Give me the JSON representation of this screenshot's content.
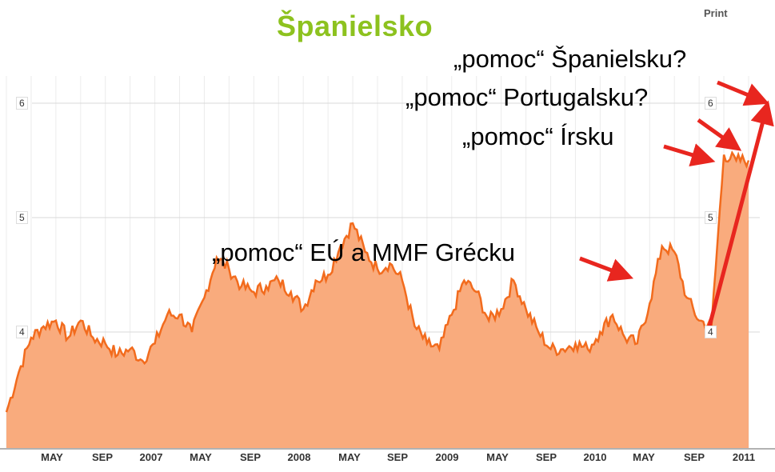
{
  "title": "Španielsko",
  "print_label": "Print",
  "annotations": [
    {
      "text": "„pomoc“ Španielsku?"
    },
    {
      "text": "„pomoc“ Portugalsku?"
    },
    {
      "text": "„pomoc“ Írsku"
    },
    {
      "text": "„pomoc“ EÚ a MMF Grécku"
    }
  ],
  "colors": {
    "line": "#f26b1d",
    "fill": "#f9ab7d",
    "arrow": "#e8261f",
    "title": "#8dc21f"
  },
  "chart_data": {
    "type": "area",
    "title": "Španielsko",
    "xlabel": "",
    "ylabel": "",
    "ylim": [
      3.0,
      6.3
    ],
    "yticks": [
      "6",
      "5",
      "4"
    ],
    "right_yticks": [
      "6",
      "5",
      "4"
    ],
    "x_tick_labels": [
      "MAY",
      "SEP",
      "2007",
      "MAY",
      "SEP",
      "2008",
      "MAY",
      "SEP",
      "2009",
      "MAY",
      "SEP",
      "2010",
      "MAY",
      "SEP",
      "2011"
    ],
    "grid": true,
    "series": [
      {
        "x": [
          "2006-01",
          "2006-02",
          "2006-03",
          "2006-04",
          "2006-05",
          "2006-06",
          "2006-07",
          "2006-08",
          "2006-09",
          "2006-10",
          "2006-11",
          "2006-12",
          "2007-01",
          "2007-02",
          "2007-03",
          "2007-04",
          "2007-05",
          "2007-06",
          "2007-07",
          "2007-08",
          "2007-09",
          "2007-10",
          "2007-11",
          "2007-12",
          "2008-01",
          "2008-02",
          "2008-03",
          "2008-04",
          "2008-05",
          "2008-06",
          "2008-07",
          "2008-08",
          "2008-09",
          "2008-10",
          "2008-11",
          "2008-12",
          "2009-01",
          "2009-02",
          "2009-03",
          "2009-04",
          "2009-05",
          "2009-06",
          "2009-07",
          "2009-08",
          "2009-09",
          "2009-10",
          "2009-11",
          "2009-12",
          "2010-01",
          "2010-02",
          "2010-03",
          "2010-04",
          "2010-05",
          "2010-06",
          "2010-07",
          "2010-08",
          "2010-09",
          "2010-10",
          "2010-11",
          "2010-12",
          "2011-01"
        ],
        "values": [
          3.3,
          3.65,
          3.95,
          4.05,
          4.1,
          3.95,
          4.1,
          3.95,
          3.9,
          3.8,
          3.85,
          3.75,
          3.9,
          4.15,
          4.15,
          4.0,
          4.3,
          4.65,
          4.55,
          4.4,
          4.35,
          4.4,
          4.45,
          4.35,
          4.2,
          4.45,
          4.5,
          4.75,
          4.95,
          4.7,
          4.55,
          4.6,
          4.45,
          4.05,
          3.9,
          3.85,
          4.15,
          4.45,
          4.35,
          4.1,
          4.2,
          4.45,
          4.2,
          4.0,
          3.85,
          3.85,
          3.9,
          3.85,
          4.0,
          4.15,
          3.95,
          3.9,
          4.25,
          4.75,
          4.7,
          4.3,
          4.1,
          4.05,
          5.55,
          5.5,
          5.5
        ]
      }
    ]
  }
}
